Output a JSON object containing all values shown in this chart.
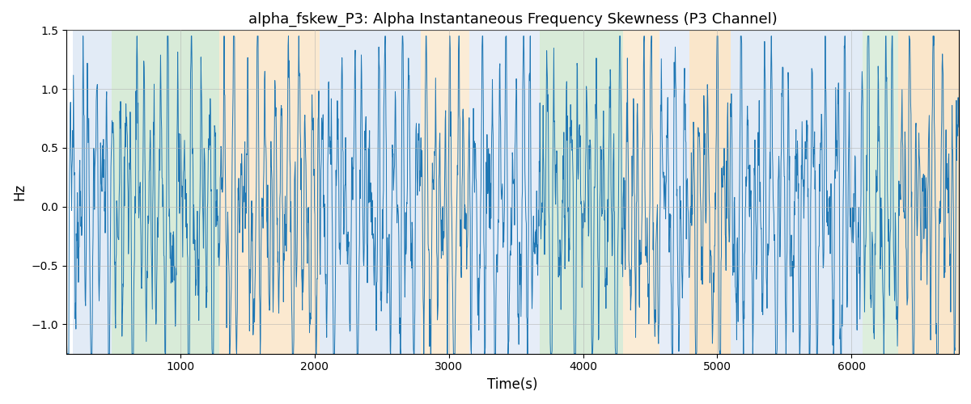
{
  "title": "alpha_fskew_P3: Alpha Instantaneous Frequency Skewness (P3 Channel)",
  "xlabel": "Time(s)",
  "ylabel": "Hz",
  "ylim": [
    -1.25,
    1.5
  ],
  "xlim": [
    150,
    6800
  ],
  "line_color": "#1f77b4",
  "line_width": 0.7,
  "background_bands": [
    {
      "xmin": 200,
      "xmax": 490,
      "color": "#aec6e8",
      "alpha": 0.35
    },
    {
      "xmin": 490,
      "xmax": 1290,
      "color": "#90c890",
      "alpha": 0.35
    },
    {
      "xmin": 1290,
      "xmax": 2040,
      "color": "#f5c98a",
      "alpha": 0.4
    },
    {
      "xmin": 2040,
      "xmax": 2790,
      "color": "#aec6e8",
      "alpha": 0.35
    },
    {
      "xmin": 2790,
      "xmax": 3150,
      "color": "#f5c98a",
      "alpha": 0.35
    },
    {
      "xmin": 3150,
      "xmax": 3680,
      "color": "#aec6e8",
      "alpha": 0.3
    },
    {
      "xmin": 3680,
      "xmax": 4300,
      "color": "#90c890",
      "alpha": 0.35
    },
    {
      "xmin": 4300,
      "xmax": 4570,
      "color": "#f5c98a",
      "alpha": 0.35
    },
    {
      "xmin": 4570,
      "xmax": 4790,
      "color": "#aec6e8",
      "alpha": 0.3
    },
    {
      "xmin": 4790,
      "xmax": 5100,
      "color": "#f5c98a",
      "alpha": 0.45
    },
    {
      "xmin": 5100,
      "xmax": 6080,
      "color": "#aec6e8",
      "alpha": 0.35
    },
    {
      "xmin": 6080,
      "xmax": 6350,
      "color": "#90c890",
      "alpha": 0.3
    },
    {
      "xmin": 6350,
      "xmax": 6800,
      "color": "#f5c98a",
      "alpha": 0.45
    }
  ],
  "grid_color": "#b0b0b0",
  "grid_alpha": 0.6,
  "title_fontsize": 13,
  "label_fontsize": 12,
  "tick_fontsize": 10,
  "n_points": 2500,
  "seed": 7
}
